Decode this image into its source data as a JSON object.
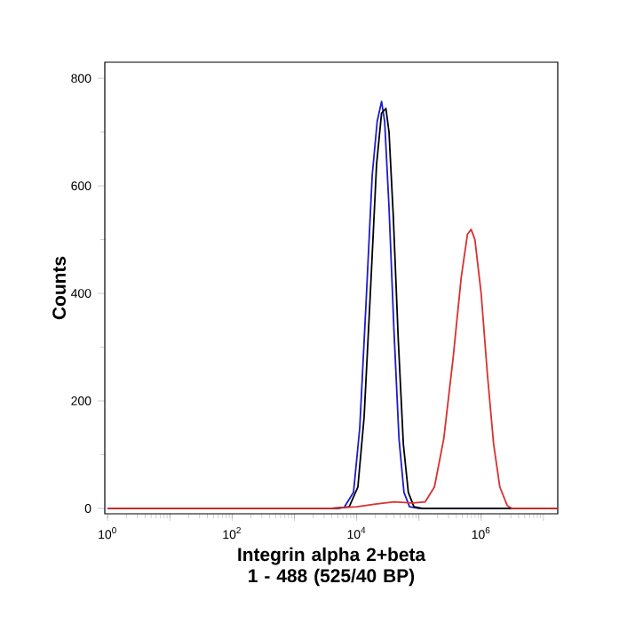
{
  "chart_data": {
    "type": "line",
    "xlabel": "Integrin alpha 2+beta 1 - 488  (525/40 BP)",
    "ylabel": "Counts",
    "log": "x",
    "grid": false,
    "marker": "none",
    "line_style": "solid",
    "xlim": [
      0.9,
      17000000
    ],
    "ylim": [
      -10,
      830
    ],
    "xticks": [
      {
        "value": 1,
        "label": "10$^{0}$"
      },
      {
        "value": 10,
        "label": null
      },
      {
        "value": 100,
        "label": "10$^{2}$"
      },
      {
        "value": 1000,
        "label": null
      },
      {
        "value": 10000,
        "label": "10$^{4}$"
      },
      {
        "value": 100000,
        "label": null
      },
      {
        "value": 1000000,
        "label": "10$^{6}$"
      },
      {
        "value": 10000000,
        "label": null
      }
    ],
    "yticks": [
      0,
      200,
      400,
      600,
      800
    ],
    "series": [
      {
        "color": "#1c1ccc",
        "x": [
          1,
          3981,
          6310,
          8913,
          11220,
          14125,
          17783,
          21380,
          25119,
          28184,
          33113,
          39811,
          47863,
          57544,
          70795,
          100000,
          17000000
        ],
        "values": [
          0,
          0,
          2,
          30,
          150,
          380,
          620,
          720,
          757,
          720,
          560,
          330,
          130,
          30,
          3,
          0,
          0
        ]
      },
      {
        "color": "#000000",
        "x": [
          1,
          5012,
          7586,
          10471,
          13183,
          16596,
          20893,
          25119,
          29512,
          33113,
          38905,
          46774,
          56234,
          67608,
          83176,
          112202,
          17000000
        ],
        "values": [
          0,
          0,
          3,
          40,
          170,
          400,
          640,
          735,
          744,
          700,
          540,
          310,
          120,
          30,
          3,
          0,
          0
        ]
      },
      {
        "color": "#d93030",
        "x": [
          1,
          3981,
          10000,
          19953,
          39811,
          79433,
          125893,
          177828,
          251189,
          354813,
          478630,
          602560,
          691831,
          794328,
          1000000,
          1258925,
          1584893,
          1995262,
          2630268,
          3162278,
          17000000
        ],
        "values": [
          0,
          0,
          3,
          8,
          12,
          10,
          12,
          40,
          130,
          280,
          430,
          510,
          519,
          500,
          400,
          250,
          120,
          40,
          5,
          0,
          0
        ]
      }
    ]
  }
}
